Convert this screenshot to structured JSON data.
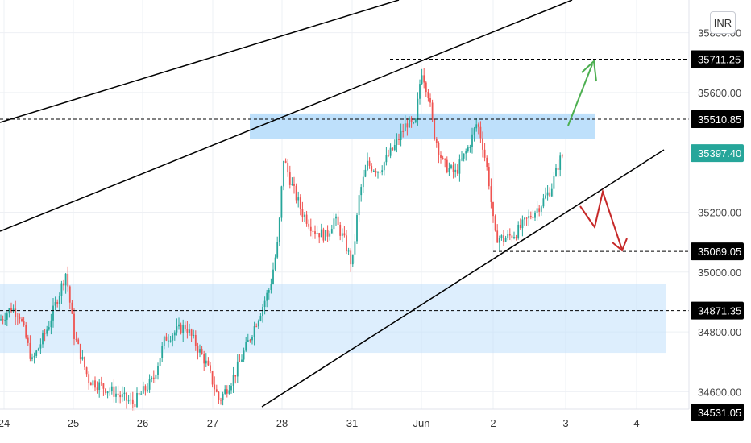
{
  "currency": "INR",
  "chart_data": {
    "type": "candlestick",
    "x_ticks": [
      "24",
      "25",
      "26",
      "27",
      "28",
      "31",
      "Jun",
      "2",
      "3",
      "4"
    ],
    "y_ticks": [
      35800.0,
      35600.0,
      35200.0,
      35000.0,
      34800.0,
      34600.0
    ],
    "ylim": [
      34531.05,
      35880.0
    ],
    "price_labels": [
      {
        "value": "35711.25",
        "kind": "level"
      },
      {
        "value": "35510.85",
        "kind": "level"
      },
      {
        "value": "35397.40",
        "kind": "last"
      },
      {
        "value": "35069.05",
        "kind": "level"
      },
      {
        "value": "34871.35",
        "kind": "level"
      },
      {
        "value": "34531.05",
        "kind": "level"
      }
    ],
    "levels": [
      35711.25,
      35510.85,
      35069.05,
      34871.35
    ],
    "zones": [
      [
        35445,
        35530
      ],
      [
        34730,
        34960
      ]
    ],
    "colors": {
      "up": "#26a69a",
      "down": "#ef5350",
      "last": "#26a69a",
      "label": "#000000",
      "zone": "#bbdefb",
      "up_arrow": "#4caf50",
      "down_arrow": "#c62828"
    }
  }
}
